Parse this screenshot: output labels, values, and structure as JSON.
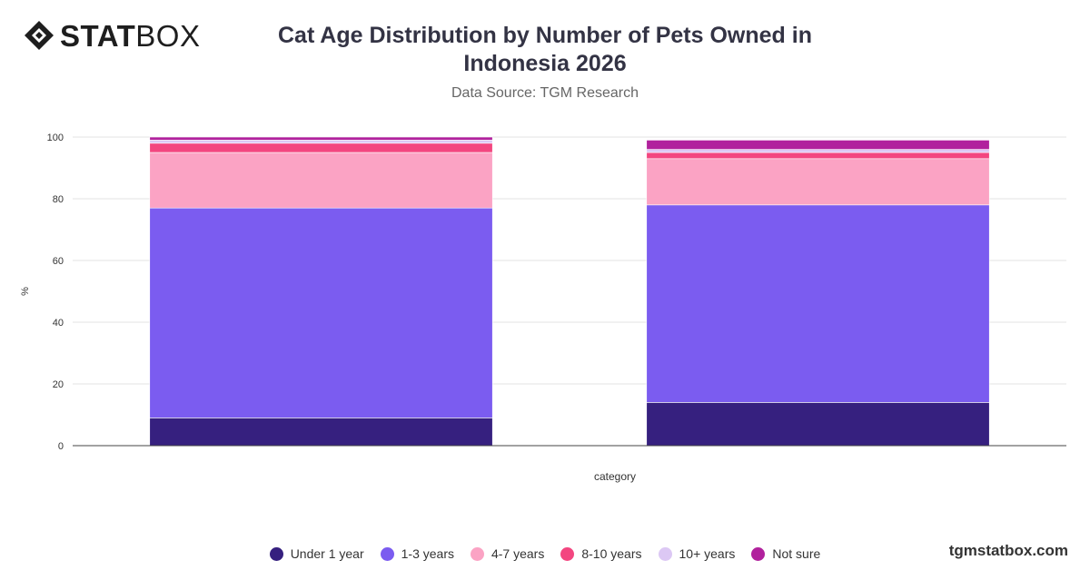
{
  "brand": {
    "logo_bold": "STAT",
    "logo_light": "BOX",
    "footer": "tgmstatbox.com"
  },
  "header": {
    "title_line1": "Cat Age Distribution by Number of Pets Owned in",
    "title_line2": "Indonesia 2026",
    "subtitle": "Data Source: TGM Research"
  },
  "chart_data": {
    "type": "bar",
    "stacked": true,
    "categories": [
      "",
      ""
    ],
    "xlabel": "category",
    "ylabel": "%",
    "ylim": [
      0,
      100
    ],
    "yticks": [
      0,
      20,
      40,
      60,
      80,
      100
    ],
    "grid": true,
    "legend_position": "bottom",
    "series": [
      {
        "name": "Under 1 year",
        "color": "#36207f",
        "values": [
          9,
          14
        ]
      },
      {
        "name": "1-3 years",
        "color": "#7b5cf0",
        "values": [
          68,
          64
        ]
      },
      {
        "name": "4-7 years",
        "color": "#fba3c4",
        "values": [
          18,
          15
        ]
      },
      {
        "name": "8-10 years",
        "color": "#f34680",
        "values": [
          3,
          2
        ]
      },
      {
        "name": "10+ years",
        "color": "#dcc8f4",
        "values": [
          1,
          1
        ]
      },
      {
        "name": "Not sure",
        "color": "#b1219d",
        "values": [
          1,
          3
        ]
      }
    ]
  }
}
